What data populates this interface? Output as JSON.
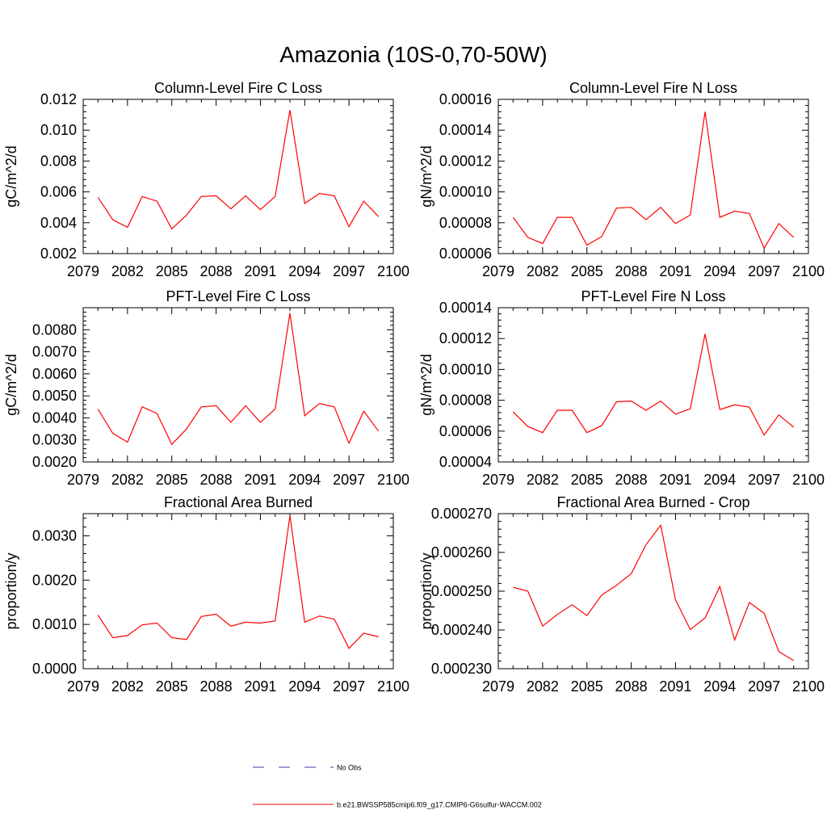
{
  "figure": {
    "title": "Amazonia (10S-0,70-50W)",
    "legend": [
      {
        "label": "No Obs",
        "color": "#3b3ba8",
        "style": "dashed"
      },
      {
        "label": "b.e21.BWSSP585cmip6.f09_g17.CMIP6-G6sulfur-WACCM.002",
        "color": "#ff0000",
        "style": "solid"
      }
    ]
  },
  "chart_data": [
    {
      "type": "line",
      "title": "Column-Level Fire C Loss",
      "ylabel": "gC/m^2/d",
      "xlim": [
        2079,
        2100
      ],
      "ylim": [
        0.002,
        0.012
      ],
      "xticks": [
        "2079",
        "2082",
        "2085",
        "2088",
        "2091",
        "2094",
        "2097",
        "2100"
      ],
      "yticks": [
        "0.002",
        "0.004",
        "0.006",
        "0.008",
        "0.010",
        "0.012"
      ],
      "x": [
        2080,
        2081,
        2082,
        2083,
        2084,
        2085,
        2086,
        2087,
        2088,
        2089,
        2090,
        2091,
        2092,
        2093,
        2094,
        2095,
        2096,
        2097,
        2098,
        2099
      ],
      "series": [
        {
          "name": "b.e21.BWSSP585cmip6.f09_g17.CMIP6-G6sulfur-WACCM.002",
          "color": "#ff0000",
          "values": [
            0.00565,
            0.0042,
            0.0037,
            0.0057,
            0.0054,
            0.0036,
            0.0045,
            0.0057,
            0.00575,
            0.0049,
            0.00575,
            0.00485,
            0.0057,
            0.0113,
            0.00525,
            0.0059,
            0.00575,
            0.00375,
            0.0054,
            0.0044
          ]
        }
      ]
    },
    {
      "type": "line",
      "title": "Column-Level Fire N Loss",
      "ylabel": "gN/m^2/d",
      "xlim": [
        2079,
        2100
      ],
      "ylim": [
        6e-05,
        0.00016
      ],
      "xticks": [
        "2079",
        "2082",
        "2085",
        "2088",
        "2091",
        "2094",
        "2097",
        "2100"
      ],
      "yticks": [
        "0.00006",
        "0.00008",
        "0.00010",
        "0.00012",
        "0.00014",
        "0.00016"
      ],
      "x": [
        2080,
        2081,
        2082,
        2083,
        2084,
        2085,
        2086,
        2087,
        2088,
        2089,
        2090,
        2091,
        2092,
        2093,
        2094,
        2095,
        2096,
        2097,
        2098,
        2099
      ],
      "series": [
        {
          "name": "b.e21.BWSSP585cmip6.f09_g17.CMIP6-G6sulfur-WACCM.002",
          "color": "#ff0000",
          "values": [
            8.35e-05,
            7.05e-05,
            6.65e-05,
            8.35e-05,
            8.35e-05,
            6.55e-05,
            7.1e-05,
            8.95e-05,
            9e-05,
            8.2e-05,
            9e-05,
            7.95e-05,
            8.5e-05,
            0.000152,
            8.35e-05,
            8.75e-05,
            8.6e-05,
            6.35e-05,
            7.95e-05,
            7.05e-05
          ]
        }
      ]
    },
    {
      "type": "line",
      "title": "PFT-Level Fire C Loss",
      "ylabel": "gC/m^2/d",
      "xlim": [
        2079,
        2100
      ],
      "ylim": [
        0.002,
        0.009
      ],
      "xticks": [
        "2079",
        "2082",
        "2085",
        "2088",
        "2091",
        "2094",
        "2097",
        "2100"
      ],
      "yticks": [
        "0.0020",
        "0.0030",
        "0.0040",
        "0.0050",
        "0.0060",
        "0.0070",
        "0.0080"
      ],
      "x": [
        2080,
        2081,
        2082,
        2083,
        2084,
        2085,
        2086,
        2087,
        2088,
        2089,
        2090,
        2091,
        2092,
        2093,
        2094,
        2095,
        2096,
        2097,
        2098,
        2099
      ],
      "series": [
        {
          "name": "b.e21.BWSSP585cmip6.f09_g17.CMIP6-G6sulfur-WACCM.002",
          "color": "#ff0000",
          "values": [
            0.0044,
            0.0033,
            0.0029,
            0.0045,
            0.0042,
            0.0028,
            0.0035,
            0.0045,
            0.00455,
            0.0038,
            0.00455,
            0.0038,
            0.0044,
            0.00875,
            0.0041,
            0.00465,
            0.0045,
            0.00285,
            0.0043,
            0.0034
          ]
        }
      ]
    },
    {
      "type": "line",
      "title": "PFT-Level Fire N Loss",
      "ylabel": "gN/m^2/d",
      "xlim": [
        2079,
        2100
      ],
      "ylim": [
        4e-05,
        0.00014
      ],
      "xticks": [
        "2079",
        "2082",
        "2085",
        "2088",
        "2091",
        "2094",
        "2097",
        "2100"
      ],
      "yticks": [
        "0.00004",
        "0.00006",
        "0.00008",
        "0.00010",
        "0.00012",
        "0.00014"
      ],
      "x": [
        2080,
        2081,
        2082,
        2083,
        2084,
        2085,
        2086,
        2087,
        2088,
        2089,
        2090,
        2091,
        2092,
        2093,
        2094,
        2095,
        2096,
        2097,
        2098,
        2099
      ],
      "series": [
        {
          "name": "b.e21.BWSSP585cmip6.f09_g17.CMIP6-G6sulfur-WACCM.002",
          "color": "#ff0000",
          "values": [
            7.25e-05,
            6.3e-05,
            5.9e-05,
            7.35e-05,
            7.35e-05,
            5.9e-05,
            6.35e-05,
            7.9e-05,
            7.95e-05,
            7.35e-05,
            7.95e-05,
            7.1e-05,
            7.45e-05,
            0.000123,
            7.4e-05,
            7.7e-05,
            7.55e-05,
            5.75e-05,
            7.05e-05,
            6.25e-05
          ]
        }
      ]
    },
    {
      "type": "line",
      "title": "Fractional Area Burned",
      "ylabel": "proportion/y",
      "xlim": [
        2079,
        2100
      ],
      "ylim": [
        0,
        0.0035
      ],
      "xticks": [
        "2079",
        "2082",
        "2085",
        "2088",
        "2091",
        "2094",
        "2097",
        "2100"
      ],
      "yticks": [
        "0.0000",
        "0.0010",
        "0.0020",
        "0.0030"
      ],
      "x": [
        2080,
        2081,
        2082,
        2083,
        2084,
        2085,
        2086,
        2087,
        2088,
        2089,
        2090,
        2091,
        2092,
        2093,
        2094,
        2095,
        2096,
        2097,
        2098,
        2099
      ],
      "series": [
        {
          "name": "b.e21.BWSSP585cmip6.f09_g17.CMIP6-G6sulfur-WACCM.002",
          "color": "#ff0000",
          "values": [
            0.00121,
            0.0007,
            0.00075,
            0.00099,
            0.00103,
            0.0007,
            0.00066,
            0.00118,
            0.00123,
            0.00096,
            0.00105,
            0.00103,
            0.00108,
            0.00345,
            0.00105,
            0.00119,
            0.00112,
            0.00046,
            0.0008,
            0.00072
          ]
        }
      ]
    },
    {
      "type": "line",
      "title": "Fractional Area Burned - Crop",
      "ylabel": "proportion/y",
      "xlim": [
        2079,
        2100
      ],
      "ylim": [
        0.00023,
        0.00027
      ],
      "xticks": [
        "2079",
        "2082",
        "2085",
        "2088",
        "2091",
        "2094",
        "2097",
        "2100"
      ],
      "yticks": [
        "0.000230",
        "0.000240",
        "0.000250",
        "0.000260",
        "0.000270"
      ],
      "x": [
        2080,
        2081,
        2082,
        2083,
        2084,
        2085,
        2086,
        2087,
        2088,
        2089,
        2090,
        2091,
        2092,
        2093,
        2094,
        2095,
        2096,
        2097,
        2098,
        2099
      ],
      "series": [
        {
          "name": "b.e21.BWSSP585cmip6.f09_g17.CMIP6-G6sulfur-WACCM.002",
          "color": "#ff0000",
          "values": [
            0.000251,
            0.00025,
            0.000241,
            0.000244,
            0.0002465,
            0.0002437,
            0.000249,
            0.0002515,
            0.0002545,
            0.000262,
            0.000267,
            0.0002478,
            0.0002401,
            0.0002431,
            0.0002512,
            0.0002374,
            0.0002471,
            0.0002443,
            0.0002344,
            0.0002321
          ]
        }
      ]
    }
  ]
}
